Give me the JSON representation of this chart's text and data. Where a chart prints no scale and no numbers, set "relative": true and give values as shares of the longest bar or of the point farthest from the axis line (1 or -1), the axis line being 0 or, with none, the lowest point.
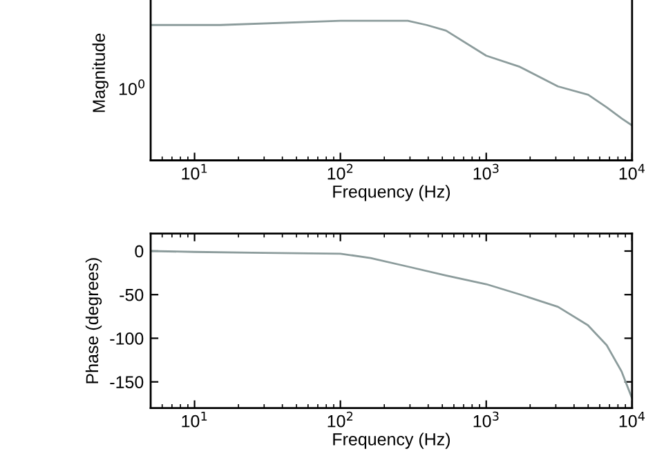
{
  "chart_data": [
    {
      "type": "line",
      "xlabel": "Frequency (Hz)",
      "ylabel": "Magnitude",
      "log": "x",
      "grid": false,
      "x": [
        5,
        15,
        100,
        180,
        290,
        390,
        530,
        1000,
        1700,
        3100,
        5000,
        6700,
        8500,
        10000
      ],
      "series": [
        {
          "color": "#8c9c9c",
          "values": [
            0.97,
            0.97,
            1,
            1,
            1,
            0.97,
            0.93,
            0.75,
            0.67,
            0.53,
            0.47,
            0.38,
            0.3,
            0.25
          ]
        }
      ],
      "relative": true,
      "annotations": [
        "10$^{0}$"
      ],
      "xlim": [
        5,
        10000
      ],
      "xticks": [
        {
          "value": 10,
          "label": "10$^{1}$"
        },
        {
          "value": 100,
          "label": "10$^{2}$"
        },
        {
          "value": 1000,
          "label": "10$^{3}$"
        },
        {
          "value": 10000,
          "label": "10$^{4}$"
        }
      ]
    },
    {
      "type": "line",
      "xlabel": "Frequency (Hz)",
      "ylabel": "Phase (degrees)",
      "log": "x",
      "grid": false,
      "x": [
        5,
        10,
        30,
        100,
        161,
        293,
        528,
        1000,
        1722,
        3105,
        4977,
        6700,
        8470,
        10000
      ],
      "series": [
        {
          "color": "#8c9c9c",
          "values": [
            0,
            -1,
            -2,
            -3,
            -8,
            -18,
            -28,
            -38,
            -50,
            -64,
            -85,
            -108,
            -138,
            -169
          ]
        }
      ],
      "xlim": [
        5,
        10000
      ],
      "xticks": [
        {
          "value": 10,
          "label": "10$^{1}$"
        },
        {
          "value": 100,
          "label": "10$^{2}$"
        },
        {
          "value": 1000,
          "label": "10$^{3}$"
        },
        {
          "value": 10000,
          "label": "10$^{4}$"
        }
      ],
      "ylim": [
        -180,
        20
      ],
      "yticks": [
        0,
        -50,
        -100,
        -150
      ]
    }
  ]
}
